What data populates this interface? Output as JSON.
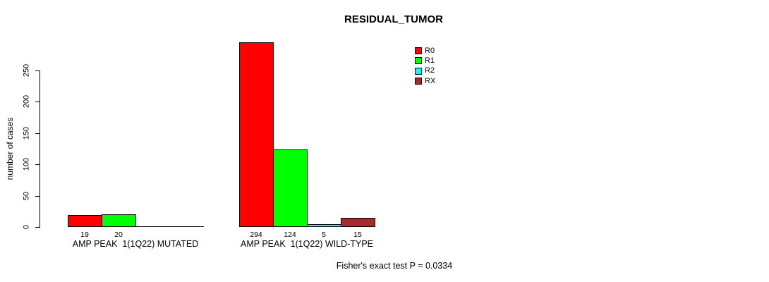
{
  "chart_data": {
    "type": "bar",
    "title": "RESIDUAL_TUMOR",
    "ylabel": "number of cases",
    "xlabel": "",
    "categories": [
      "AMP PEAK  1(1Q22) MUTATED",
      "AMP PEAK  1(1Q22) WILD-TYPE"
    ],
    "series": [
      {
        "name": "R0",
        "color": "#ff0000",
        "values": [
          19,
          294
        ]
      },
      {
        "name": "R1",
        "color": "#00ff00",
        "values": [
          20,
          124
        ]
      },
      {
        "name": "R2",
        "color": "#00ffff",
        "values": [
          0,
          5
        ]
      },
      {
        "name": "RX",
        "color": "#a52a2a",
        "values": [
          0,
          15
        ]
      }
    ],
    "yticks": [
      0,
      50,
      100,
      150,
      200,
      250
    ],
    "ylim": [
      0,
      295
    ],
    "grid": false,
    "legend_position": "top-right",
    "bar_border_color": "#000000",
    "annotation": "Fisher's exact test P = 0.0334"
  }
}
